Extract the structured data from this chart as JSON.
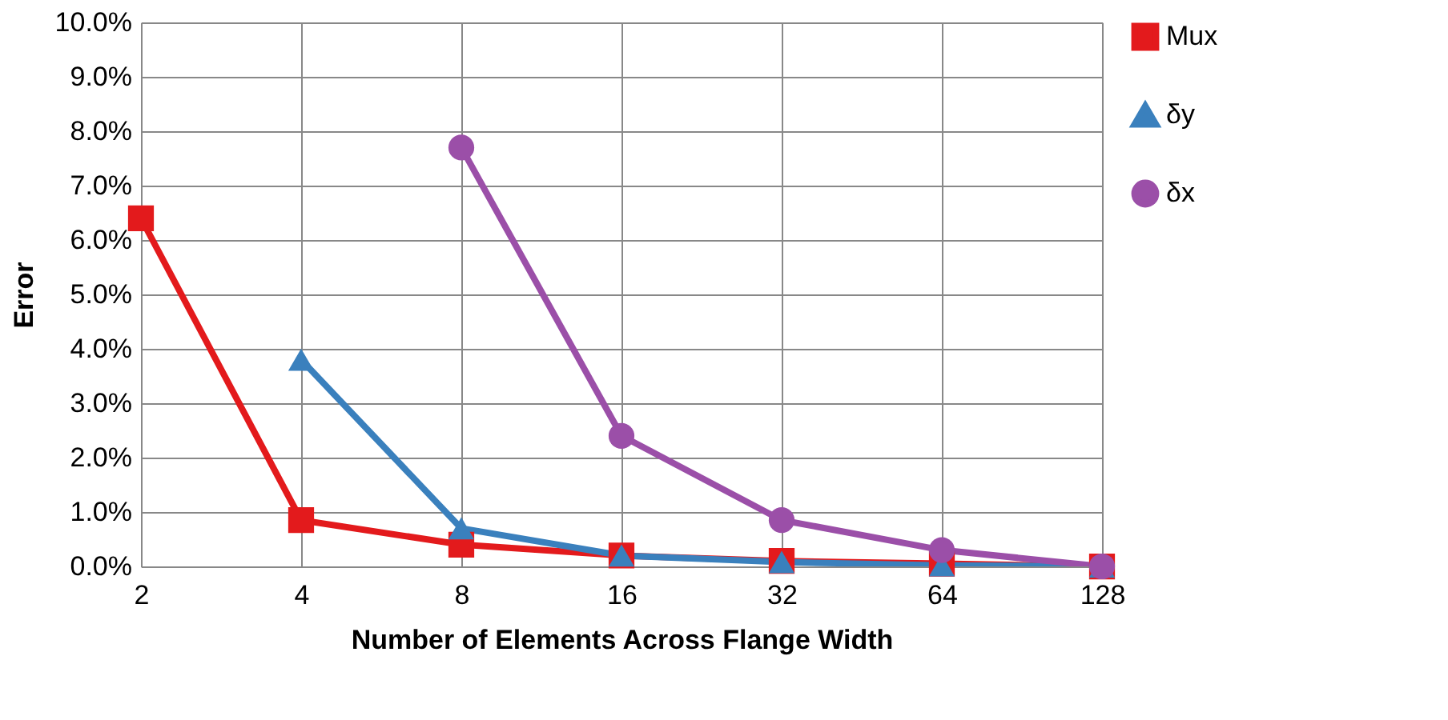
{
  "chart_data": {
    "type": "line",
    "xlabel": "Number of Elements Across Flange Width",
    "ylabel": "Error",
    "categories": [
      "2",
      "4",
      "8",
      "16",
      "32",
      "64",
      "128"
    ],
    "series": [
      {
        "name": "Mux",
        "color": "#e31a1c",
        "marker": "square",
        "values": [
          6.4,
          0.85,
          0.4,
          0.2,
          0.1,
          0.05,
          0
        ]
      },
      {
        "name": "δy",
        "color": "#3a80bd",
        "marker": "triangle",
        "values": [
          null,
          3.8,
          0.7,
          0.2,
          0.08,
          0.02,
          0
        ]
      },
      {
        "name": "δx",
        "color": "#9b4fa8",
        "marker": "circle",
        "values": [
          null,
          null,
          7.7,
          2.4,
          0.85,
          0.3,
          0
        ]
      }
    ],
    "ylim": [
      0,
      10
    ],
    "yticks": [
      {
        "value": 0,
        "label": "0.0%"
      },
      {
        "value": 1,
        "label": "1.0%"
      },
      {
        "value": 2,
        "label": "2.0%"
      },
      {
        "value": 3,
        "label": "3.0%"
      },
      {
        "value": 4,
        "label": "4.0%"
      },
      {
        "value": 5,
        "label": "5.0%"
      },
      {
        "value": 6,
        "label": "6.0%"
      },
      {
        "value": 7,
        "label": "7.0%"
      },
      {
        "value": 8,
        "label": "8.0%"
      },
      {
        "value": 9,
        "label": "9.0%"
      },
      {
        "value": 10,
        "label": "10.0%"
      }
    ],
    "grid": true,
    "legend": "right",
    "line_style": "solid"
  }
}
